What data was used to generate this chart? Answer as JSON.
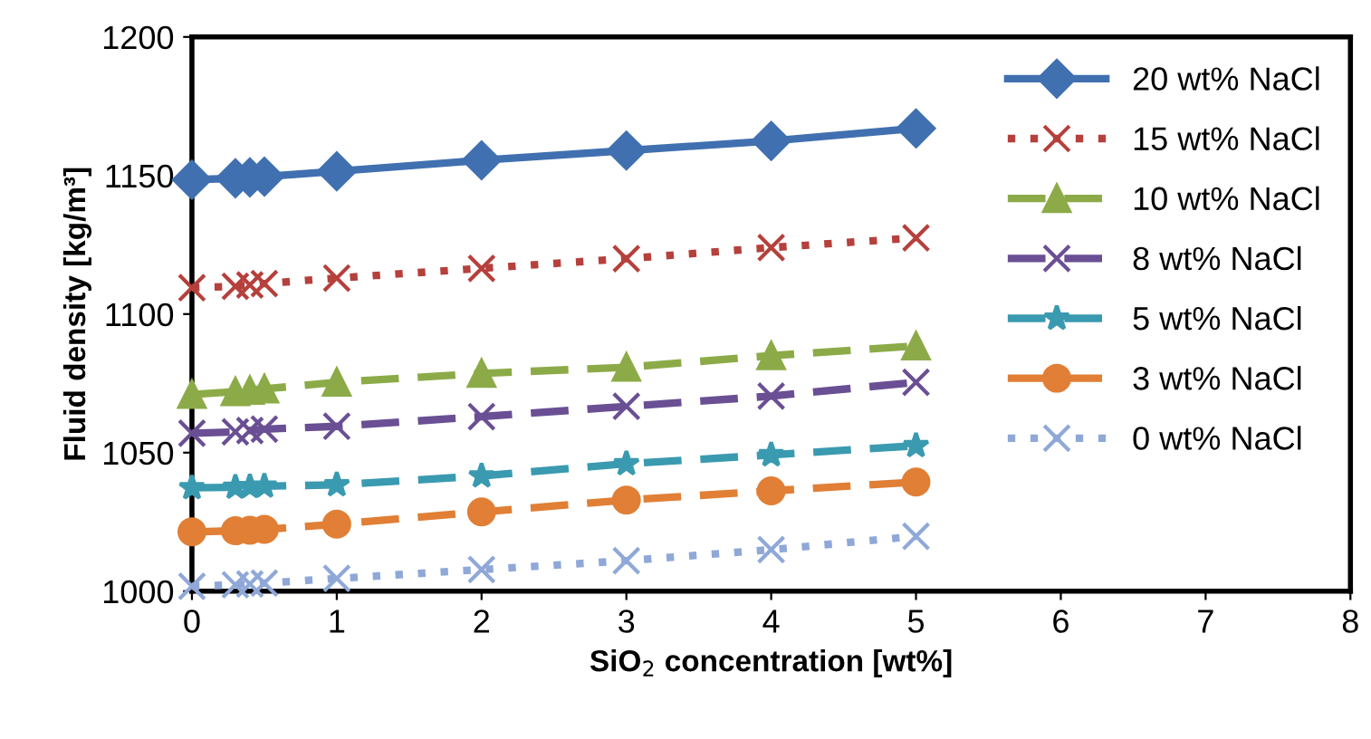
{
  "chart_data": {
    "type": "line",
    "xlabel": "SiO$_{2}$ concentration [wt%]",
    "ylabel": "Fluid density [kg/m³]",
    "x": [
      0,
      0.3,
      0.4,
      0.5,
      1,
      2,
      3,
      4,
      5
    ],
    "series": [
      {
        "name": "20 wt% NaCl",
        "color": "#4070b0",
        "marker": "diamond",
        "line_style": "solid",
        "values": [
          1148.5,
          1149,
          1149.3,
          1149.6,
          1151.5,
          1155.5,
          1159,
          1162.5,
          1167
        ]
      },
      {
        "name": "15 wt% NaCl",
        "color": "#b5403c",
        "marker": "cross",
        "line_style": "dotted",
        "values": [
          1109.5,
          1110,
          1110.5,
          1111,
          1113,
          1116.5,
          1120,
          1124,
          1127.5
        ]
      },
      {
        "name": "10 wt% NaCl",
        "color": "#8cab48",
        "marker": "triangle",
        "line_style": "dashed",
        "values": [
          1071,
          1072,
          1072.5,
          1073,
          1075.4,
          1078.6,
          1080.8,
          1085,
          1088.5
        ]
      },
      {
        "name": "8 wt% NaCl",
        "color": "#6a4f94",
        "marker": "cross",
        "line_style": "dashed",
        "values": [
          1057,
          1057.5,
          1058,
          1058.5,
          1059.5,
          1063,
          1066.7,
          1070.4,
          1075.4
        ]
      },
      {
        "name": "5 wt% NaCl",
        "color": "#3a9ab0",
        "marker": "star",
        "line_style": "dashed",
        "values": [
          1037.3,
          1037.5,
          1037.7,
          1037.9,
          1038.4,
          1041.6,
          1046,
          1049.2,
          1052.5
        ]
      },
      {
        "name": "3 wt% NaCl",
        "color": "#e07f35",
        "marker": "circle",
        "line_style": "dashed",
        "values": [
          1021.4,
          1021.8,
          1022,
          1022.3,
          1024.2,
          1028.6,
          1032.9,
          1036.2,
          1039.4
        ]
      },
      {
        "name": "0 wt% NaCl",
        "color": "#8fa8d8",
        "marker": "cross",
        "line_style": "dotted",
        "values": [
          1001.8,
          1002.3,
          1002.6,
          1002.9,
          1004.6,
          1007.8,
          1011,
          1015,
          1019.8
        ]
      }
    ],
    "xlim": [
      0,
      8
    ],
    "xticks": [
      0,
      1,
      2,
      3,
      4,
      5,
      6,
      7,
      8
    ],
    "ylim": [
      1000,
      1200
    ],
    "yticks": [
      1000,
      1050,
      1100,
      1150,
      1200
    ],
    "legend": "top right"
  }
}
